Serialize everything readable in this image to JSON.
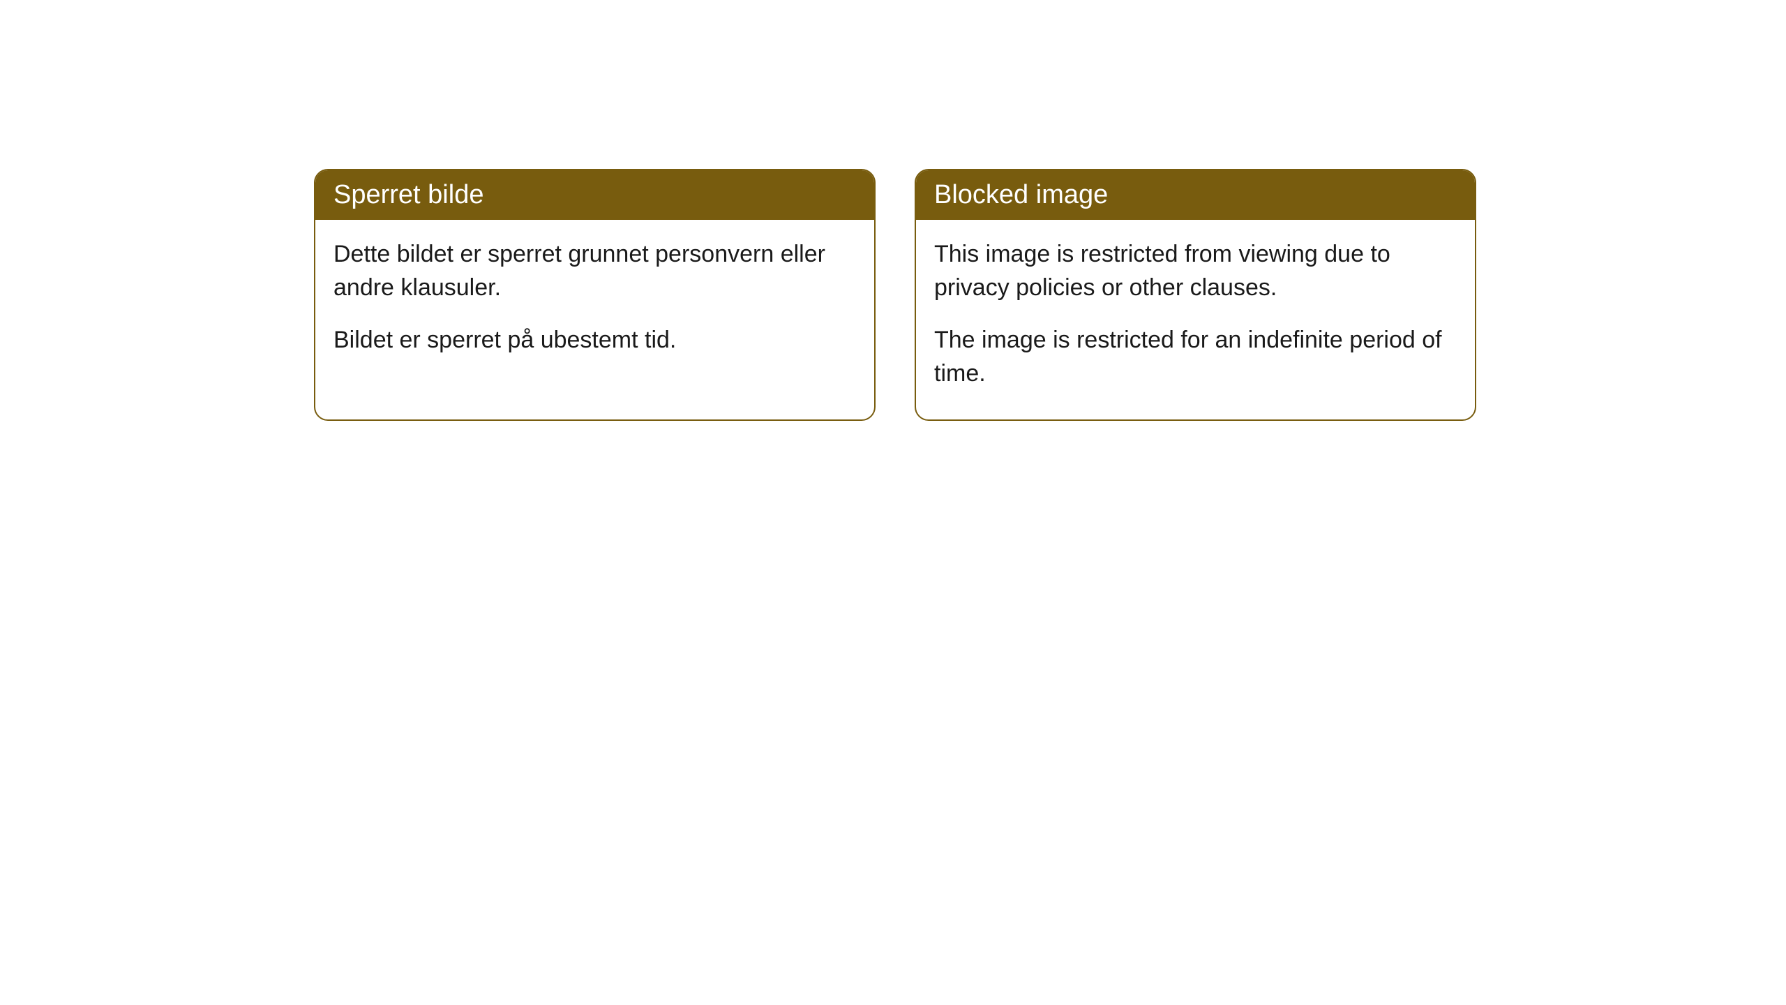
{
  "cards": [
    {
      "title": "Sperret bilde",
      "paragraph1": "Dette bildet er sperret grunnet personvern eller andre klausuler.",
      "paragraph2": "Bildet er sperret på ubestemt tid."
    },
    {
      "title": "Blocked image",
      "paragraph1": "This image is restricted from viewing due to privacy policies or other clauses.",
      "paragraph2": "The image is restricted for an indefinite period of time."
    }
  ],
  "styling": {
    "header_bg_color": "#785c0e",
    "header_text_color": "#ffffff",
    "border_color": "#785c0e",
    "body_bg_color": "#ffffff",
    "body_text_color": "#1a1a1a",
    "border_radius": "20px",
    "title_fontsize": 38,
    "body_fontsize": 34
  }
}
